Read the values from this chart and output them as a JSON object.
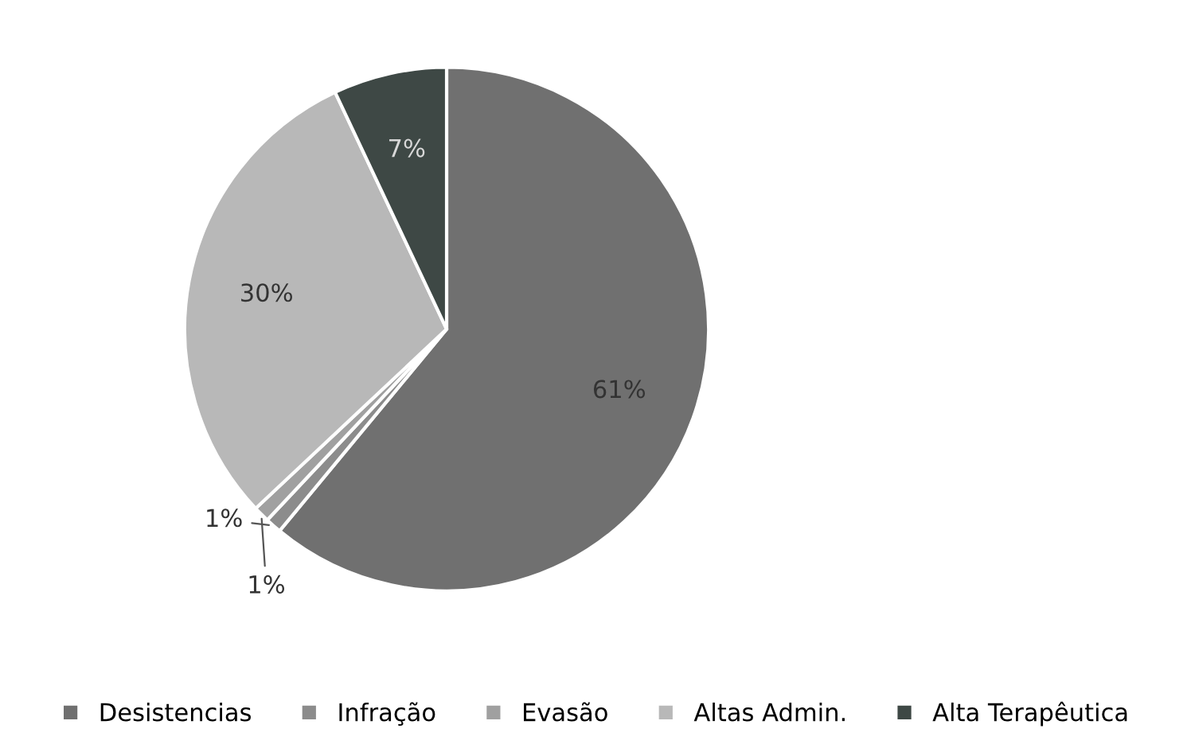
{
  "chart_data": {
    "type": "pie",
    "categories": [
      "Desistencias",
      "Infração",
      "Evasão",
      "Altas Admin.",
      "Alta Terapêutica"
    ],
    "values": [
      61,
      1,
      1,
      30,
      7
    ],
    "colors": [
      "#707070",
      "#8c8c8c",
      "#a0a0a0",
      "#b8b8b8",
      "#3e4845"
    ],
    "value_labels": [
      "61%",
      "1%",
      "1%",
      "30%",
      "7%"
    ],
    "legend": "bottom"
  }
}
